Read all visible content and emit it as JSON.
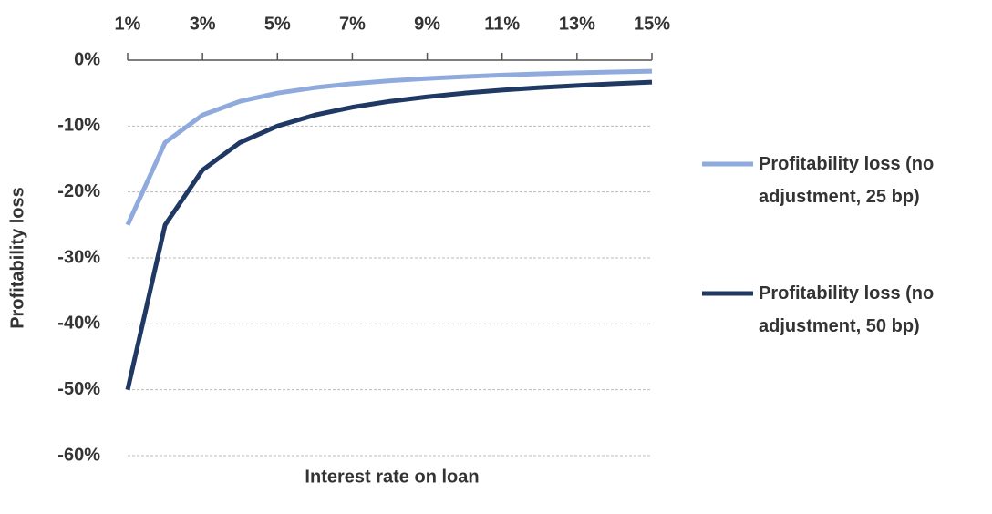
{
  "chart_data": {
    "type": "line",
    "x_label": "Interest rate on loan",
    "y_label": "Profitability loss",
    "x": [
      1,
      2,
      3,
      4,
      5,
      6,
      7,
      8,
      9,
      10,
      11,
      12,
      13,
      14,
      15
    ],
    "series": [
      {
        "name": "Profitability loss (no adjustment, 25 bp)",
        "color": "#8faadc",
        "values": [
          -25,
          -12.5,
          -8.33,
          -6.25,
          -5,
          -4.17,
          -3.57,
          -3.13,
          -2.78,
          -2.5,
          -2.27,
          -2.08,
          -1.92,
          -1.79,
          -1.67
        ]
      },
      {
        "name": "Profitability loss (no adjustment, 50 bp)",
        "color": "#1f3864",
        "values": [
          -50,
          -25,
          -16.67,
          -12.5,
          -10,
          -8.33,
          -7.14,
          -6.25,
          -5.56,
          -5,
          -4.55,
          -4.17,
          -3.85,
          -3.57,
          -3.33
        ]
      }
    ],
    "xlim": [
      1,
      15
    ],
    "xticks": [
      {
        "value": 1,
        "label": "1%"
      },
      {
        "value": 3,
        "label": "3%"
      },
      {
        "value": 5,
        "label": "5%"
      },
      {
        "value": 7,
        "label": "7%"
      },
      {
        "value": 9,
        "label": "9%"
      },
      {
        "value": 11,
        "label": "11%"
      },
      {
        "value": 13,
        "label": "13%"
      },
      {
        "value": 15,
        "label": "15%"
      }
    ],
    "ylim": [
      -60,
      0
    ],
    "yticks": [
      {
        "value": 0,
        "label": "0%"
      },
      {
        "value": -10,
        "label": "-10%"
      },
      {
        "value": -20,
        "label": "-20%"
      },
      {
        "value": -30,
        "label": "-30%"
      },
      {
        "value": -40,
        "label": "-40%"
      },
      {
        "value": -50,
        "label": "-50%"
      },
      {
        "value": -60,
        "label": "-60%"
      }
    ],
    "grid": true,
    "legend": "right"
  }
}
